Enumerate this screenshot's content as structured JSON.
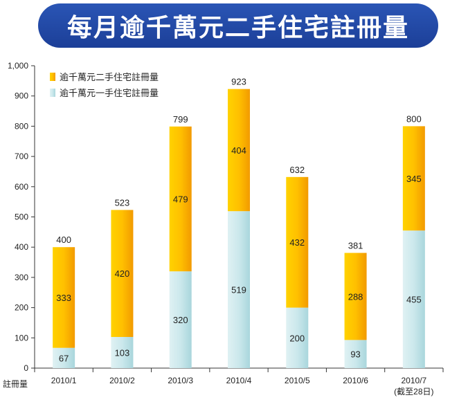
{
  "chart_data": {
    "type": "bar",
    "stacked": true,
    "title": "每月逾千萬元二手住宅註冊量",
    "ylabel": "註冊量",
    "xlabel": "",
    "ylim": [
      0,
      1000
    ],
    "yticks": [
      "0",
      "100",
      "200",
      "300",
      "400",
      "500",
      "600",
      "700",
      "800",
      "900",
      "1,000"
    ],
    "ytick_values": [
      0,
      100,
      200,
      300,
      400,
      500,
      600,
      700,
      800,
      900,
      1000
    ],
    "categories": [
      "2010/1",
      "2010/2",
      "2010/3",
      "2010/4",
      "2010/5",
      "2010/6",
      "2010/7"
    ],
    "category_notes": [
      "",
      "",
      "",
      "",
      "",
      "",
      "(截至28日)"
    ],
    "series": [
      {
        "name": "逾千萬元一手住宅註冊量",
        "color": "#c5e6ea",
        "values": [
          67,
          103,
          320,
          519,
          200,
          93,
          455
        ]
      },
      {
        "name": "逾千萬元二手住宅註冊量",
        "color": "#f8b400",
        "values": [
          333,
          420,
          479,
          404,
          432,
          288,
          345
        ]
      }
    ],
    "totals": [
      400,
      523,
      799,
      923,
      632,
      381,
      800
    ],
    "legend_position": "top-left",
    "grid": false
  }
}
